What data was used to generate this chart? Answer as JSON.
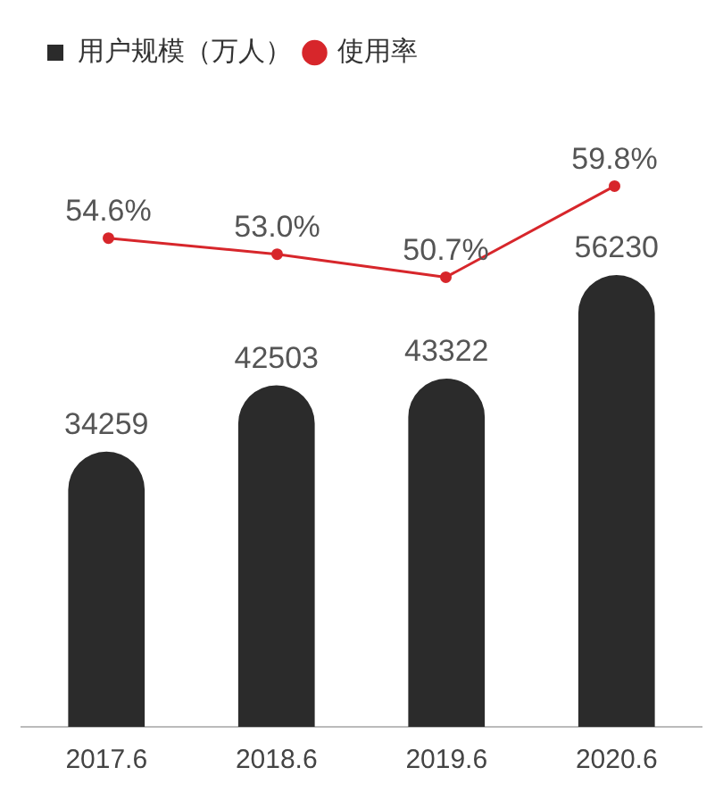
{
  "chart_data": [
    {
      "type": "bar",
      "categories": [
        "2017.6",
        "2018.6",
        "2019.6",
        "2020.6"
      ],
      "series": [
        {
          "name": "用户规模（万人）",
          "type": "bar",
          "color": "#2b2b2b",
          "values": [
            34259,
            42503,
            43322,
            56230
          ]
        }
      ],
      "data_labels": true,
      "legend": "top left",
      "tick_labels": "x"
    },
    {
      "type": "line",
      "categories": [
        "2017.6",
        "2018.6",
        "2019.6",
        "2020.6"
      ],
      "tick_labels": false,
      "data_labels": true,
      "series": [
        {
          "name": "使用率",
          "color": "#d7262b",
          "values": [
            54.6,
            53.0,
            50.7,
            59.8
          ],
          "value_labels": [
            "54.6%",
            "53.0%",
            "50.7%",
            "59.8%"
          ]
        }
      ],
      "legend": "top",
      "marker": "circle"
    }
  ]
}
